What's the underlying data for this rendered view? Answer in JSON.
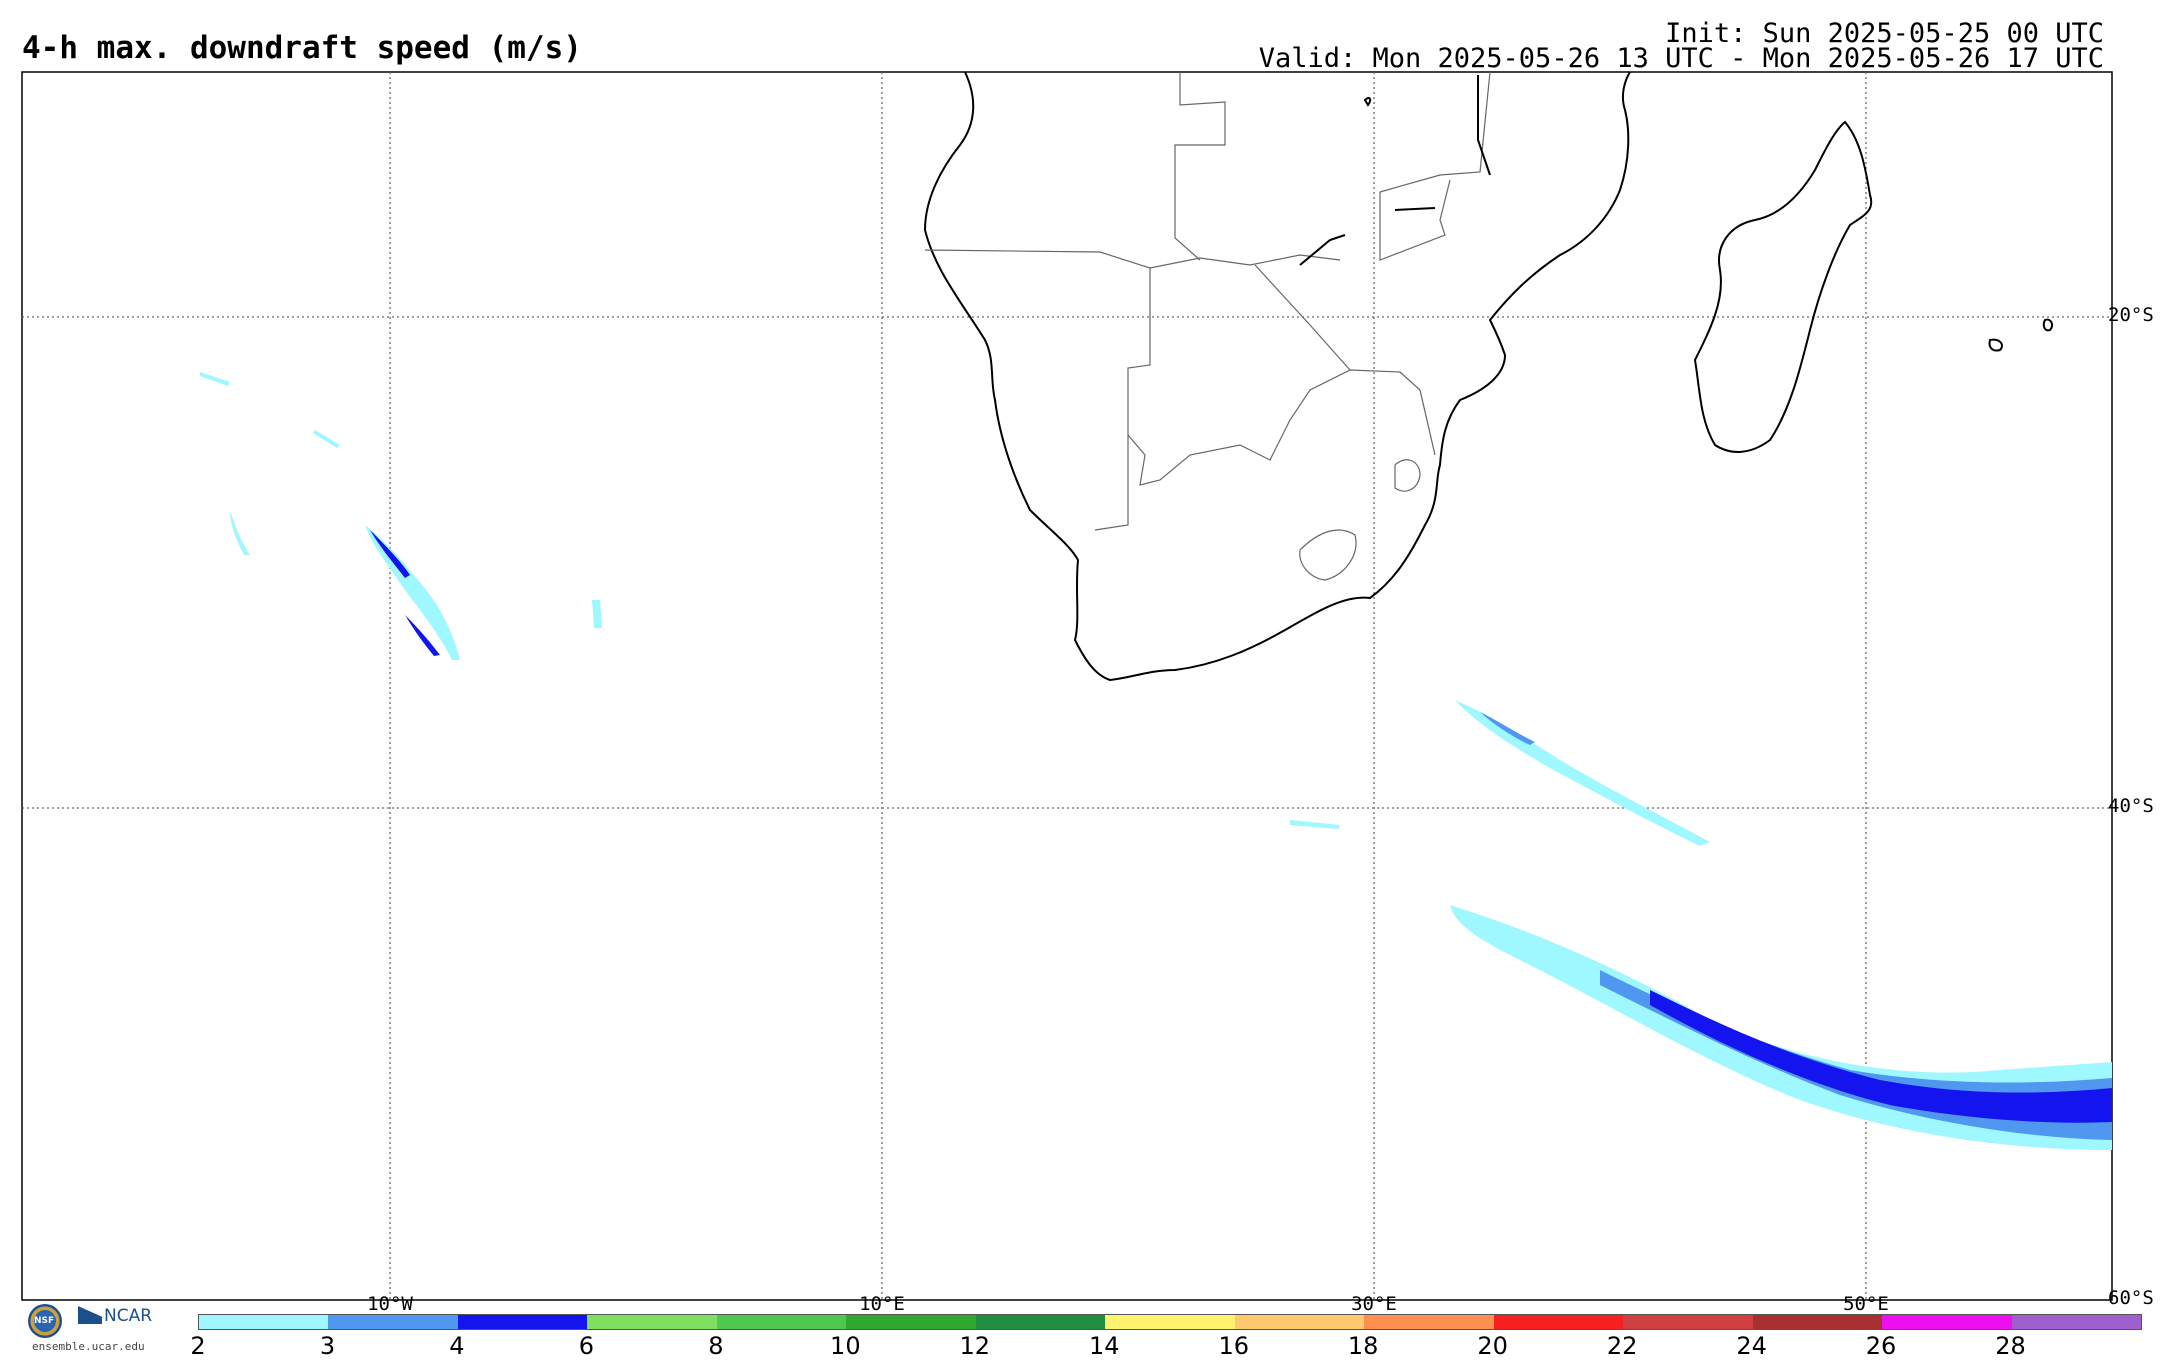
{
  "header": {
    "title": "4-h max. downdraft speed (m/s)",
    "init": "Init: Sun 2025-05-25 00 UTC",
    "valid": "Valid: Mon 2025-05-26 13 UTC - Mon 2025-05-26 17 UTC"
  },
  "map": {
    "lat_labels": [
      "20°S",
      "40°S",
      "60°S"
    ],
    "lon_labels": [
      "10°W",
      "10°E",
      "30°E",
      "50°E"
    ],
    "grid_style": "dotted",
    "region": "Southern Africa and South Atlantic / Indian Ocean"
  },
  "colorbar": {
    "ticks": [
      "2",
      "3",
      "4",
      "6",
      "8",
      "10",
      "12",
      "14",
      "16",
      "18",
      "20",
      "22",
      "24",
      "26",
      "28"
    ],
    "colors": [
      "#9ff7ff",
      "#4f97ef",
      "#1414ef",
      "#7fdf5f",
      "#4fc84f",
      "#30a930",
      "#1f8f3f",
      "#fff26f",
      "#ffc96f",
      "#ff8f4f",
      "#f72020",
      "#d04040",
      "#a83030",
      "#ef10ef",
      "#9f5fcf"
    ]
  },
  "logo": {
    "nsf": "NSF",
    "ncar": "NCAR",
    "site": "ensemble.ucar.edu"
  }
}
